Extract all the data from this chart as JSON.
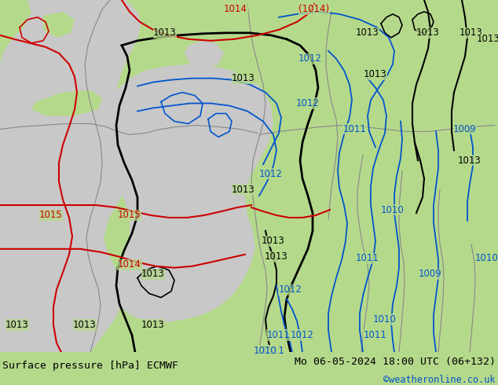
{
  "title_left": "Surface pressure [hPa] ECMWF",
  "title_right": "Mo 06-05-2024 18:00 UTC (06+132)",
  "credit": "©weatheronline.co.uk",
  "bg_color": "#b5d98b",
  "sea_color": "#c8c8c8",
  "bottom_bar_color": "#c8e6a0",
  "black": "#000000",
  "blue": "#0055cc",
  "red": "#cc0000",
  "gray": "#888888",
  "figsize": [
    6.34,
    4.9
  ],
  "dpi": 100
}
